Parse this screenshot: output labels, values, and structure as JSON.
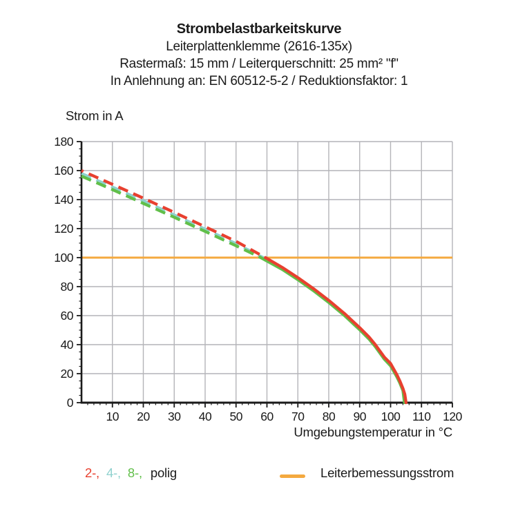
{
  "header": {
    "title": "Strombelastbarkeitskurve",
    "subtitle1": "Leiterplattenklemme (2616-135x)",
    "subtitle2": "Rastermaß: 15 mm / Leiterquerschnitt: 25 mm² \"f\"",
    "subtitle3": "In Anlehnung an: EN 60512-5-2 / Reduktionsfaktor: 1"
  },
  "chart_data": {
    "type": "line",
    "title": "Strombelastbarkeitskurve",
    "xlabel": "Umgebungstemperatur in °C",
    "ylabel": "Strom in A",
    "xlim": [
      0,
      120
    ],
    "ylim": [
      0,
      180
    ],
    "x_tick_step": 10,
    "x_minor_step": 2,
    "y_tick_step": 20,
    "y_minor_step": 5,
    "grid": true,
    "grid_color": "#b4b4b8",
    "axis_color": "#1a1a1a",
    "rated_current": {
      "label": "Leiterbemessungsstrom",
      "value": 100,
      "color": "#f4a93f"
    },
    "line_style_note": "curves dashed above rated current, solid below",
    "series": [
      {
        "name": "2-polig",
        "color": "#e8402f",
        "points": [
          [
            0,
            160
          ],
          [
            10,
            150.5
          ],
          [
            20,
            141
          ],
          [
            30,
            131.2
          ],
          [
            40,
            121.3
          ],
          [
            50,
            111.2
          ],
          [
            59.5,
            100
          ],
          [
            65,
            93.2
          ],
          [
            70,
            86.2
          ],
          [
            75,
            78.7
          ],
          [
            80,
            70.5
          ],
          [
            85,
            61.6
          ],
          [
            90,
            51.7
          ],
          [
            93,
            45.3
          ],
          [
            95,
            40.2
          ],
          [
            98,
            31.3
          ],
          [
            100,
            27
          ],
          [
            101,
            23.2
          ],
          [
            102,
            19.4
          ],
          [
            103,
            15
          ],
          [
            104,
            9.8
          ],
          [
            104.6,
            5.8
          ],
          [
            105,
            0
          ]
        ]
      },
      {
        "name": "4-polig",
        "color": "#8fd1ce",
        "points": [
          [
            0,
            158
          ],
          [
            10,
            148.6
          ],
          [
            20,
            139.1
          ],
          [
            30,
            129.4
          ],
          [
            40,
            119.6
          ],
          [
            50,
            109.6
          ],
          [
            58.8,
            100
          ],
          [
            65,
            92.5
          ],
          [
            70,
            85.5
          ],
          [
            75,
            78
          ],
          [
            80,
            69.8
          ],
          [
            85,
            60.9
          ],
          [
            90,
            51
          ],
          [
            93,
            44.6
          ],
          [
            95,
            39.5
          ],
          [
            98,
            30.6
          ],
          [
            100,
            26.1
          ],
          [
            101,
            22.4
          ],
          [
            102,
            18.6
          ],
          [
            103,
            14.3
          ],
          [
            104,
            9
          ],
          [
            104.8,
            0
          ]
        ]
      },
      {
        "name": "8-polig",
        "color": "#61bf4a",
        "points": [
          [
            0,
            156.2
          ],
          [
            10,
            146.9
          ],
          [
            20,
            137.4
          ],
          [
            30,
            127.8
          ],
          [
            40,
            118.1
          ],
          [
            50,
            108.2
          ],
          [
            58,
            100
          ],
          [
            65,
            91.8
          ],
          [
            70,
            84.8
          ],
          [
            75,
            77.3
          ],
          [
            80,
            69.1
          ],
          [
            85,
            60.2
          ],
          [
            90,
            50.3
          ],
          [
            93,
            43.9
          ],
          [
            95,
            38.8
          ],
          [
            98,
            29.9
          ],
          [
            100,
            25.4
          ],
          [
            101,
            21.7
          ],
          [
            102,
            17.9
          ],
          [
            103,
            13.6
          ],
          [
            104,
            8.3
          ],
          [
            104.5,
            0
          ]
        ]
      }
    ]
  },
  "legend": {
    "poles": [
      {
        "label": "2-,"
      },
      {
        "label": "4-,"
      },
      {
        "label": "8-,"
      }
    ],
    "suffix": "polig",
    "rated_label": "Leiterbemessungsstrom"
  }
}
